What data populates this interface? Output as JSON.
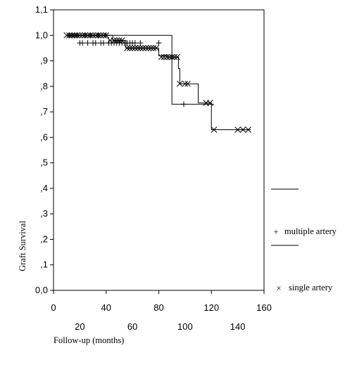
{
  "chart_data": {
    "type": "line",
    "subtype": "kaplan-meier step survival curves with censor marks",
    "title": "",
    "xlabel": "Follow-up (months)",
    "ylabel": "Graft Survival",
    "xlim": [
      0,
      160
    ],
    "ylim": [
      0.0,
      1.1
    ],
    "grid": false,
    "legend_position": "right",
    "x_ticks_top_row": [
      "0",
      "40",
      "80",
      "120",
      "160"
    ],
    "x_ticks_bottom_row": [
      "20",
      "60",
      "100",
      "140"
    ],
    "y_ticks": [
      "0,0",
      ",1",
      ",2",
      ",3",
      ",4",
      ",5",
      ",6",
      ",7",
      ",8",
      ",9",
      "1,0",
      "1,1"
    ],
    "series": [
      {
        "name": "multiple artery",
        "marker": "plus",
        "step_x": [
          10,
          90,
          122
        ],
        "step_y": [
          1.0,
          0.73,
          0.73
        ],
        "censor_x": [
          12,
          14,
          16,
          18,
          20,
          22,
          24,
          26,
          28,
          30,
          32,
          34,
          36,
          38,
          40,
          42,
          44,
          46,
          48,
          50,
          52,
          54,
          56,
          58,
          60,
          62,
          66,
          80,
          99
        ],
        "censor_y": [
          1.0,
          1.0,
          1.0,
          1.0,
          0.97,
          0.97,
          1.0,
          0.97,
          1.0,
          0.97,
          0.97,
          1.0,
          0.97,
          0.97,
          1.0,
          0.97,
          0.97,
          0.97,
          0.97,
          0.97,
          0.97,
          0.97,
          0.97,
          0.97,
          0.97,
          0.97,
          0.97,
          0.97,
          0.73
        ]
      },
      {
        "name": "single artery",
        "marker": "x",
        "step_x": [
          10,
          45,
          55,
          80,
          86,
          95,
          96,
          101,
          110,
          117,
          120,
          150
        ],
        "step_y": [
          1.0,
          0.98,
          0.95,
          0.92,
          0.915,
          0.87,
          0.81,
          0.81,
          0.735,
          0.735,
          0.63,
          0.63
        ],
        "censor_x": [
          10,
          12,
          14,
          16,
          18,
          20,
          22,
          24,
          26,
          28,
          30,
          32,
          34,
          36,
          38,
          40,
          43,
          46,
          48,
          50,
          52,
          56,
          58,
          60,
          62,
          64,
          66,
          68,
          70,
          72,
          74,
          76,
          78,
          82,
          84,
          86,
          88,
          90,
          92,
          94,
          96,
          100,
          102,
          116,
          119,
          122,
          140,
          144,
          148
        ],
        "censor_y": [
          1.0,
          1.0,
          1.0,
          1.0,
          1.0,
          1.0,
          1.0,
          1.0,
          1.0,
          1.0,
          1.0,
          1.0,
          1.0,
          1.0,
          1.0,
          1.0,
          0.98,
          0.98,
          0.98,
          0.98,
          0.98,
          0.95,
          0.95,
          0.95,
          0.95,
          0.95,
          0.95,
          0.95,
          0.95,
          0.95,
          0.95,
          0.95,
          0.95,
          0.915,
          0.915,
          0.915,
          0.915,
          0.915,
          0.915,
          0.915,
          0.81,
          0.81,
          0.81,
          0.735,
          0.735,
          0.63,
          0.63,
          0.63,
          0.63
        ]
      }
    ]
  }
}
